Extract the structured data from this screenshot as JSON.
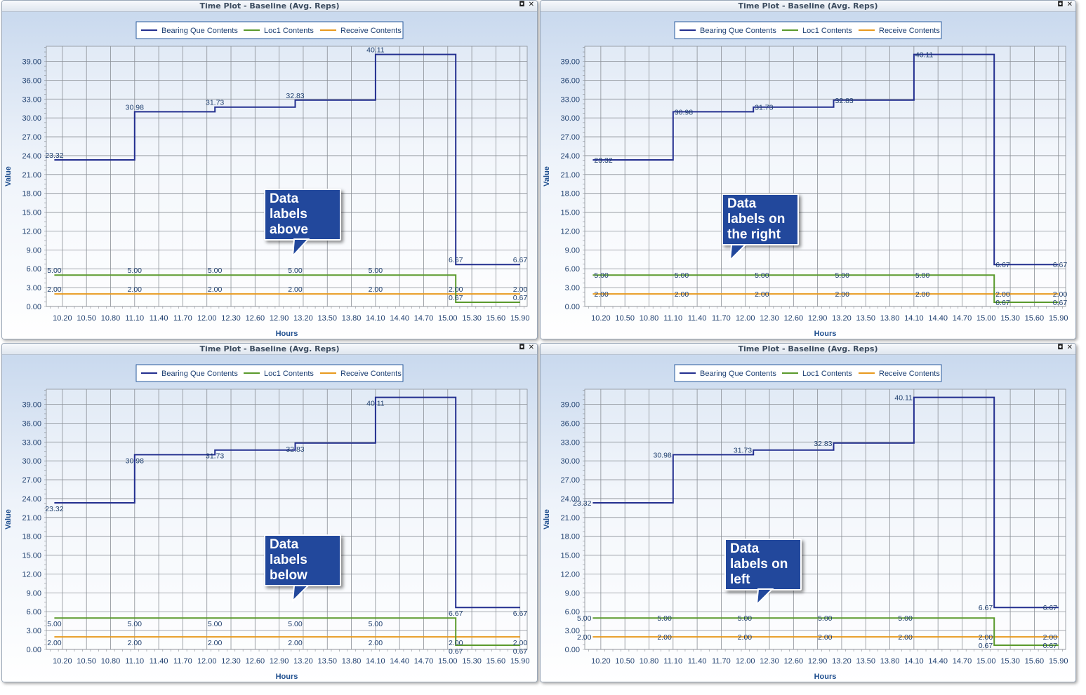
{
  "panels": [
    {
      "title": "Time Plot - Baseline (Avg. Reps)",
      "callout": "Data labels above",
      "callout_lines": [
        "Data",
        "labels",
        "above"
      ],
      "label_position": "above"
    },
    {
      "title": "Time Plot - Baseline (Avg. Reps)",
      "callout": "Data labels on the right",
      "callout_lines": [
        "Data",
        "labels on",
        "the right"
      ],
      "label_position": "right"
    },
    {
      "title": "Time Plot - Baseline (Avg. Reps)",
      "callout": "Data labels below",
      "callout_lines": [
        "Data",
        "labels",
        "below"
      ],
      "label_position": "below"
    },
    {
      "title": "Time Plot - Baseline (Avg. Reps)",
      "callout": "Data labels on left",
      "callout_lines": [
        "Data",
        "labels on",
        "left"
      ],
      "label_position": "left"
    }
  ],
  "window_buttons": [
    "◘",
    "✕"
  ],
  "chart_data": {
    "type": "line",
    "step": true,
    "xlabel": "Hours",
    "ylabel": "Value",
    "xlim": [
      10.0,
      15.99
    ],
    "ylim": [
      0,
      41.4
    ],
    "x_ticks": [
      "10.20",
      "10.50",
      "10.80",
      "11.10",
      "11.40",
      "11.70",
      "12.00",
      "12.30",
      "12.60",
      "12.90",
      "13.20",
      "13.50",
      "13.80",
      "14.10",
      "14.40",
      "14.70",
      "15.00",
      "15.30",
      "15.60",
      "15.90"
    ],
    "y_ticks": [
      "0.00",
      "3.00",
      "6.00",
      "9.00",
      "12.00",
      "15.00",
      "18.00",
      "21.00",
      "24.00",
      "27.00",
      "30.00",
      "33.00",
      "36.00",
      "39.00"
    ],
    "grid": true,
    "legend_position": "top-center",
    "series": [
      {
        "name": "Bearing Que Contents",
        "color": "#232f8f",
        "points": [
          [
            10.1,
            23.32
          ],
          [
            11.1,
            30.98
          ],
          [
            12.1,
            31.73
          ],
          [
            13.1,
            32.83
          ],
          [
            14.1,
            40.11
          ],
          [
            15.1,
            6.67
          ],
          [
            16.1,
            6.67
          ]
        ],
        "labels": [
          "23.32",
          "30.98",
          "31.73",
          "32.83",
          "40.11",
          "6.67",
          "6.67"
        ]
      },
      {
        "name": "Loc1 Contents",
        "color": "#5a9a2c",
        "points": [
          [
            10.1,
            5.0
          ],
          [
            11.1,
            5.0
          ],
          [
            12.1,
            5.0
          ],
          [
            13.1,
            5.0
          ],
          [
            14.1,
            5.0
          ],
          [
            15.1,
            0.67
          ],
          [
            16.1,
            0.67
          ]
        ],
        "labels": [
          "5.00",
          "5.00",
          "5.00",
          "5.00",
          "5.00",
          "0.67",
          "0.67"
        ]
      },
      {
        "name": "Receive Contents",
        "color": "#e89a1e",
        "points": [
          [
            10.1,
            2.0
          ],
          [
            11.1,
            2.0
          ],
          [
            12.1,
            2.0
          ],
          [
            13.1,
            2.0
          ],
          [
            14.1,
            2.0
          ],
          [
            15.1,
            2.0
          ],
          [
            16.1,
            2.0
          ]
        ],
        "labels": [
          "2.00",
          "2.00",
          "2.00",
          "2.00",
          "2.00",
          "2.00",
          "2.00"
        ]
      }
    ]
  }
}
